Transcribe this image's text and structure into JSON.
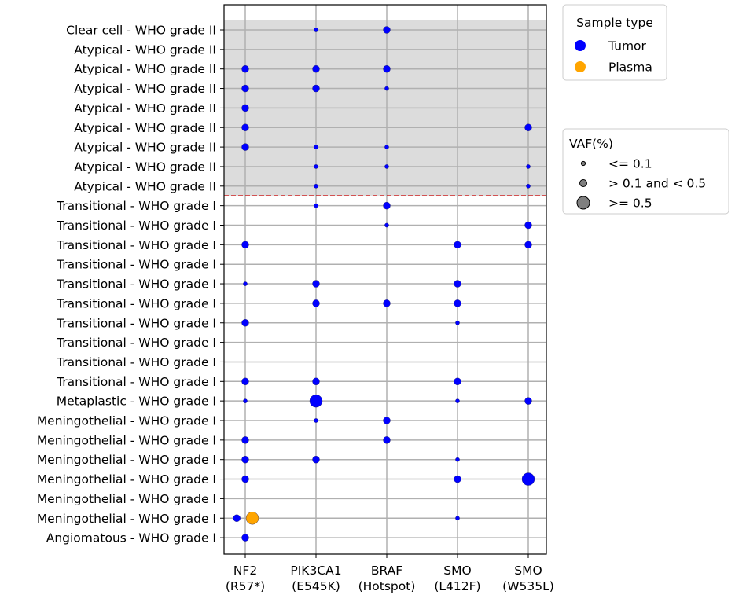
{
  "chart_data": {
    "type": "scatter",
    "title": "",
    "xlabel": "",
    "ylabel": "",
    "grid": true,
    "x_categories": [
      "NF2\n(R57*)",
      "PIK3CA1\n(E545K)",
      "BRAF\n(Hotspot)",
      "SMO\n(L412F)",
      "SMO\n(W535L)"
    ],
    "y_categories": [
      "Clear cell - WHO grade II",
      "Atypical - WHO grade II",
      "Atypical - WHO grade II",
      "Atypical - WHO grade II",
      "Atypical - WHO grade II",
      "Atypical - WHO grade II",
      "Atypical - WHO grade II",
      "Atypical - WHO grade II",
      "Atypical - WHO grade II",
      "Transitional - WHO grade I",
      "Transitional - WHO grade I",
      "Transitional - WHO grade I",
      "Transitional - WHO grade I",
      "Transitional - WHO grade I",
      "Transitional - WHO grade I",
      "Transitional - WHO grade I",
      "Transitional - WHO grade I",
      "Transitional - WHO grade I",
      "Transitional - WHO grade I",
      "Metaplastic - WHO grade I",
      "Meningothelial - WHO grade I",
      "Meningothelial - WHO grade I",
      "Meningothelial - WHO grade I",
      "Meningothelial - WHO grade I",
      "Meningothelial - WHO grade I",
      "Meningothelial - WHO grade I",
      "Angiomatous - WHO grade I"
    ],
    "shaded_rows": [
      0,
      8
    ],
    "threshold_line_between_rows": [
      8,
      9
    ],
    "threshold_line_color": "#cc0000",
    "shade_color": "#dcdcdc",
    "colors": {
      "Tumor": "#0000ff",
      "Plasma": "#ffa500"
    },
    "series": [
      {
        "name": "Tumor",
        "points": [
          {
            "x": 1,
            "y": 0,
            "vaf": 0.05
          },
          {
            "x": 2,
            "y": 0,
            "vaf": 0.3
          },
          {
            "x": 0,
            "y": 2,
            "vaf": 0.3
          },
          {
            "x": 1,
            "y": 2,
            "vaf": 0.3
          },
          {
            "x": 2,
            "y": 2,
            "vaf": 0.3
          },
          {
            "x": 0,
            "y": 3,
            "vaf": 0.3
          },
          {
            "x": 1,
            "y": 3,
            "vaf": 0.3
          },
          {
            "x": 2,
            "y": 3,
            "vaf": 0.05
          },
          {
            "x": 0,
            "y": 4,
            "vaf": 0.3
          },
          {
            "x": 0,
            "y": 5,
            "vaf": 0.3
          },
          {
            "x": 4,
            "y": 5,
            "vaf": 0.3
          },
          {
            "x": 0,
            "y": 6,
            "vaf": 0.3
          },
          {
            "x": 1,
            "y": 6,
            "vaf": 0.05
          },
          {
            "x": 2,
            "y": 6,
            "vaf": 0.05
          },
          {
            "x": 1,
            "y": 7,
            "vaf": 0.05
          },
          {
            "x": 2,
            "y": 7,
            "vaf": 0.05
          },
          {
            "x": 4,
            "y": 7,
            "vaf": 0.05
          },
          {
            "x": 1,
            "y": 8,
            "vaf": 0.05
          },
          {
            "x": 4,
            "y": 8,
            "vaf": 0.05
          },
          {
            "x": 1,
            "y": 9,
            "vaf": 0.05
          },
          {
            "x": 2,
            "y": 9,
            "vaf": 0.3
          },
          {
            "x": 2,
            "y": 10,
            "vaf": 0.05
          },
          {
            "x": 4,
            "y": 10,
            "vaf": 0.3
          },
          {
            "x": 0,
            "y": 11,
            "vaf": 0.3
          },
          {
            "x": 3,
            "y": 11,
            "vaf": 0.3
          },
          {
            "x": 4,
            "y": 11,
            "vaf": 0.3
          },
          {
            "x": 0,
            "y": 13,
            "vaf": 0.05
          },
          {
            "x": 1,
            "y": 13,
            "vaf": 0.3
          },
          {
            "x": 3,
            "y": 13,
            "vaf": 0.3
          },
          {
            "x": 1,
            "y": 14,
            "vaf": 0.3
          },
          {
            "x": 2,
            "y": 14,
            "vaf": 0.3
          },
          {
            "x": 3,
            "y": 14,
            "vaf": 0.3
          },
          {
            "x": 0,
            "y": 15,
            "vaf": 0.3
          },
          {
            "x": 3,
            "y": 15,
            "vaf": 0.05
          },
          {
            "x": 0,
            "y": 18,
            "vaf": 0.3
          },
          {
            "x": 1,
            "y": 18,
            "vaf": 0.3
          },
          {
            "x": 3,
            "y": 18,
            "vaf": 0.3
          },
          {
            "x": 0,
            "y": 19,
            "vaf": 0.05
          },
          {
            "x": 1,
            "y": 19,
            "vaf": 0.9
          },
          {
            "x": 3,
            "y": 19,
            "vaf": 0.05
          },
          {
            "x": 4,
            "y": 19,
            "vaf": 0.3
          },
          {
            "x": 1,
            "y": 20,
            "vaf": 0.05
          },
          {
            "x": 2,
            "y": 20,
            "vaf": 0.3
          },
          {
            "x": 0,
            "y": 21,
            "vaf": 0.3
          },
          {
            "x": 2,
            "y": 21,
            "vaf": 0.3
          },
          {
            "x": 0,
            "y": 22,
            "vaf": 0.3
          },
          {
            "x": 1,
            "y": 22,
            "vaf": 0.3
          },
          {
            "x": 3,
            "y": 22,
            "vaf": 0.05
          },
          {
            "x": 0,
            "y": 23,
            "vaf": 0.3
          },
          {
            "x": 3,
            "y": 23,
            "vaf": 0.3
          },
          {
            "x": 4,
            "y": 23,
            "vaf": 0.9
          },
          {
            "x": -0.12,
            "y": 25,
            "vaf": 0.3
          },
          {
            "x": 3,
            "y": 25,
            "vaf": 0.05
          },
          {
            "x": 0,
            "y": 26,
            "vaf": 0.3
          }
        ]
      },
      {
        "name": "Plasma",
        "points": [
          {
            "x": 0.1,
            "y": 25,
            "vaf": 0.5
          }
        ]
      }
    ],
    "legend_sample_type": {
      "title": "Sample type",
      "entries": [
        {
          "label": "Tumor",
          "color": "#0000ff"
        },
        {
          "label": "Plasma",
          "color": "#ffa500"
        }
      ]
    },
    "legend_vaf": {
      "title": "VAF(%)",
      "entries": [
        {
          "label": "<= 0.1",
          "vaf": 0.05
        },
        {
          "label": "> 0.1 and < 0.5",
          "vaf": 0.3
        },
        {
          "label": ">= 0.5",
          "vaf": 0.9
        }
      ]
    }
  }
}
